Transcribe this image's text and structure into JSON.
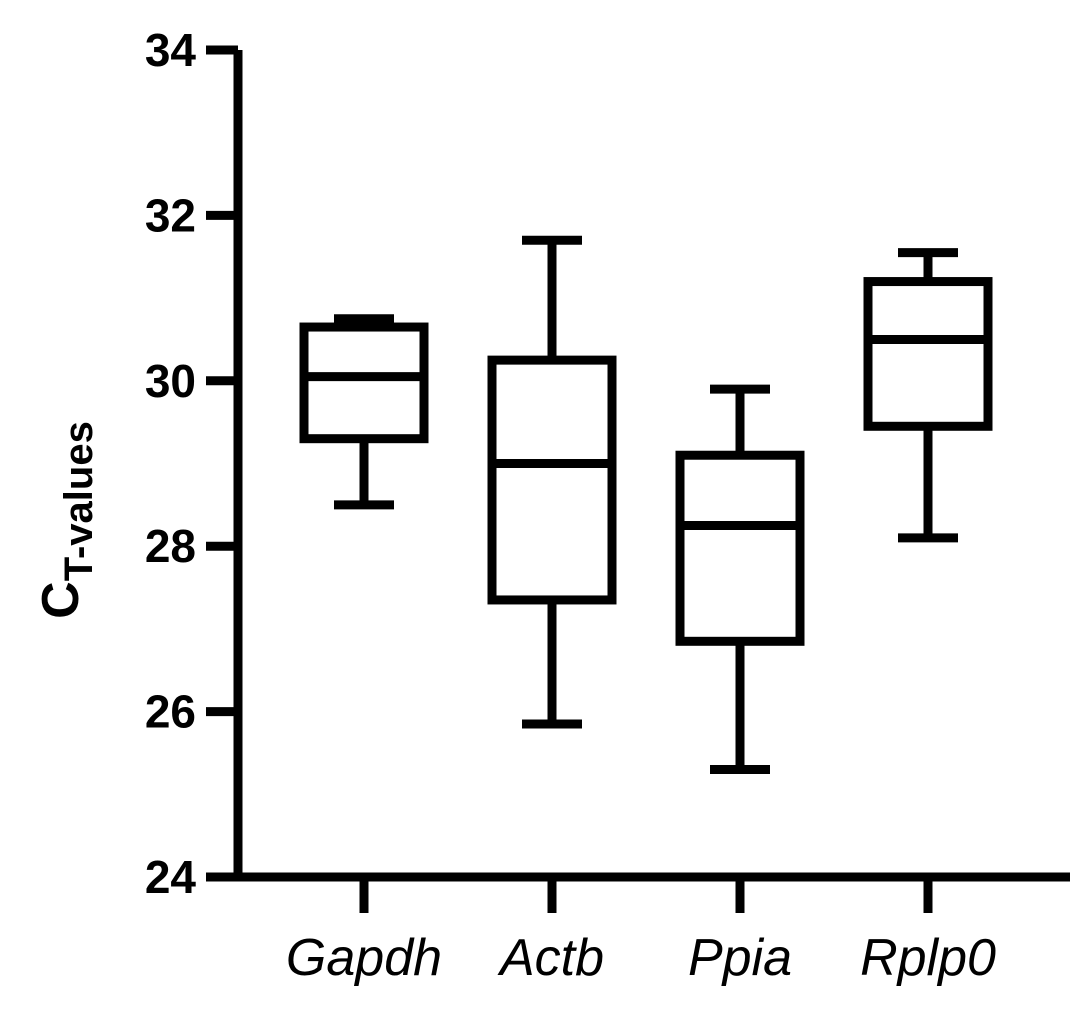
{
  "chart_data": {
    "type": "box",
    "ylabel_main": "C",
    "ylabel_sub": "T-values",
    "ylim": [
      24,
      34
    ],
    "yticks": [
      24,
      26,
      28,
      30,
      32,
      34
    ],
    "categories": [
      "Gapdh",
      "Actb",
      "Ppia",
      "Rplp0"
    ],
    "boxes": [
      {
        "category": "Gapdh",
        "min": 28.5,
        "q1": 29.3,
        "median": 30.05,
        "q3": 30.65,
        "max": 30.75
      },
      {
        "category": "Actb",
        "min": 25.85,
        "q1": 27.35,
        "median": 29.0,
        "q3": 30.25,
        "max": 31.7
      },
      {
        "category": "Ppia",
        "min": 25.3,
        "q1": 26.85,
        "median": 28.25,
        "q3": 29.1,
        "max": 29.9
      },
      {
        "category": "Rplp0",
        "min": 28.1,
        "q1": 29.45,
        "median": 30.5,
        "q3": 31.2,
        "max": 31.55
      }
    ],
    "colors": {
      "stroke": "#000000",
      "fill": "#ffffff"
    },
    "grid": false,
    "legend": "none"
  }
}
